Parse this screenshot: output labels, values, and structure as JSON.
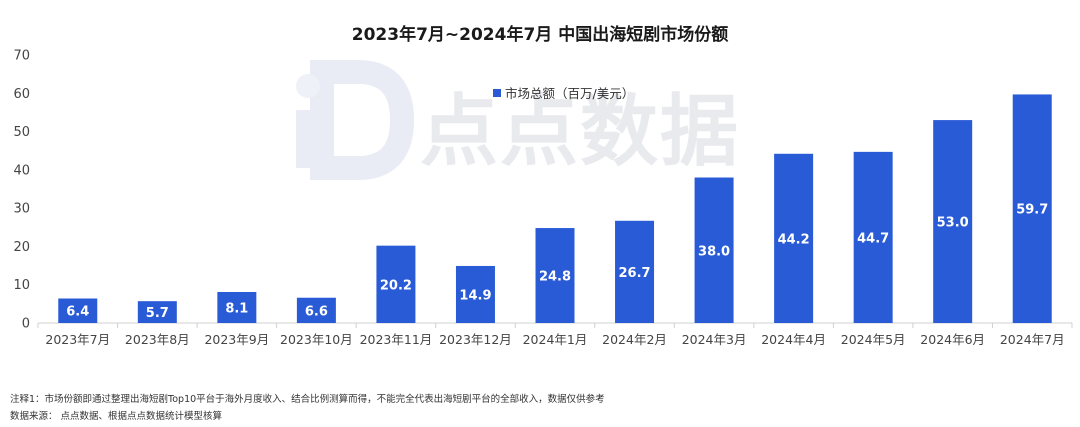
{
  "chart_data": {
    "type": "bar",
    "title": "2023年7月~2024年7月 中国出海短剧市场份额",
    "categories": [
      "2023年7月",
      "2023年8月",
      "2023年9月",
      "2023年10月",
      "2023年11月",
      "2023年12月",
      "2024年1月",
      "2024年2月",
      "2024年3月",
      "2024年4月",
      "2024年5月",
      "2024年6月",
      "2024年7月"
    ],
    "series": [
      {
        "name": "市场总额（百万/美元）",
        "values": [
          6.4,
          5.7,
          8.1,
          6.6,
          20.2,
          14.9,
          24.8,
          26.7,
          38.0,
          44.2,
          44.7,
          53.0,
          59.7
        ]
      }
    ],
    "data_labels": [
      "6.4",
      "5.7",
      "8.1",
      "6.6",
      "20.2",
      "14.9",
      "24.8",
      "26.7",
      "38.0",
      "44.2",
      "44.7",
      "53.0",
      "59.7"
    ],
    "yticks": [
      "0",
      "10",
      "20",
      "30",
      "40",
      "50",
      "60",
      "70"
    ],
    "ylim": [
      0,
      70
    ],
    "grid": false,
    "legend_position": "top-center",
    "bar_color": "#2a5bd7"
  },
  "watermark": {
    "text": "点点数据"
  },
  "notes": {
    "note1": "注释1：市场份额即通过整理出海短剧Top10平台于海外月度收入、结合比例测算而得，不能完全代表出海短剧平台的全部收入，数据仅供参考",
    "source": "数据来源：  点点数据、根据点点数据统计模型核算"
  }
}
